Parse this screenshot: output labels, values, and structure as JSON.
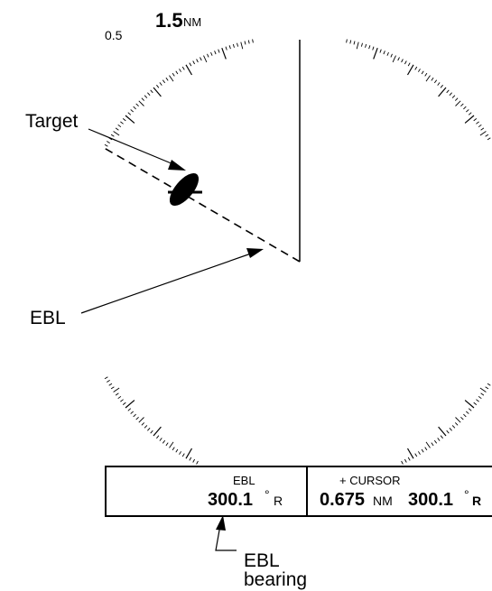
{
  "display": {
    "range_value": "1.5",
    "range_unit": "NM",
    "ring_interval": "0.5"
  },
  "callouts": {
    "target": "Target",
    "ebl": "EBL",
    "ebl_bearing_line1": "EBL",
    "ebl_bearing_line2": "bearing"
  },
  "readout": {
    "ebl": {
      "heading": "EBL",
      "bearing": "300.1",
      "degree": "°",
      "reference": "R"
    },
    "cursor": {
      "heading": "+ CURSOR",
      "range": "0.675",
      "range_unit": "NM",
      "bearing": "300.1",
      "degree": "°",
      "reference": "R"
    }
  }
}
